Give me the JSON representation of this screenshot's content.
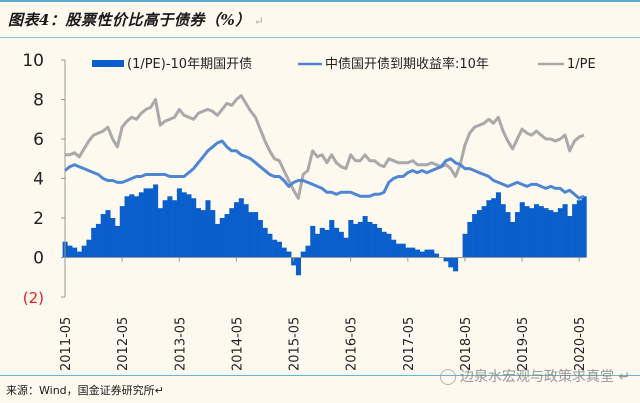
{
  "header": {
    "title": "图表4：股票性价比高于债券（%）",
    "return_mark": "↵"
  },
  "footer": {
    "source": "来源：Wind，国金证券研究所↵",
    "watermark": "边泉水宏观与政策求真堂 ↵"
  },
  "colors": {
    "spread_bar": "#0a5fcc",
    "yield_line": "#4f86d4",
    "pe_line": "#a9a9a9",
    "negative_tick": "#e02020",
    "axis": "#999999",
    "rule": "#5aaed0"
  },
  "chart_data": {
    "type": "bar+line",
    "title": "股票性价比高于债券（%）",
    "xlabel": "",
    "ylabel": "",
    "ylim": [
      -2,
      10
    ],
    "yticks": [
      {
        "value": -2,
        "label": "(2)"
      },
      {
        "value": 0,
        "label": "0"
      },
      {
        "value": 2,
        "label": "2"
      },
      {
        "value": 4,
        "label": "4"
      },
      {
        "value": 6,
        "label": "6"
      },
      {
        "value": 8,
        "label": "8"
      },
      {
        "value": 10,
        "label": "10"
      }
    ],
    "xticks": [
      "2011-05",
      "2012-05",
      "2013-05",
      "2014-05",
      "2015-05",
      "2016-05",
      "2017-05",
      "2018-05",
      "2019-05",
      "2020-05"
    ],
    "x_start": "2011-05",
    "x_end": "2020-06",
    "legend_position": "top",
    "grid": false,
    "x": [
      "2011-05",
      "2011-06",
      "2011-07",
      "2011-08",
      "2011-09",
      "2011-10",
      "2011-11",
      "2011-12",
      "2012-01",
      "2012-02",
      "2012-03",
      "2012-04",
      "2012-05",
      "2012-06",
      "2012-07",
      "2012-08",
      "2012-09",
      "2012-10",
      "2012-11",
      "2012-12",
      "2013-01",
      "2013-02",
      "2013-03",
      "2013-04",
      "2013-05",
      "2013-06",
      "2013-07",
      "2013-08",
      "2013-09",
      "2013-10",
      "2013-11",
      "2013-12",
      "2014-01",
      "2014-02",
      "2014-03",
      "2014-04",
      "2014-05",
      "2014-06",
      "2014-07",
      "2014-08",
      "2014-09",
      "2014-10",
      "2014-11",
      "2014-12",
      "2015-01",
      "2015-02",
      "2015-03",
      "2015-04",
      "2015-05",
      "2015-06",
      "2015-07",
      "2015-08",
      "2015-09",
      "2015-10",
      "2015-11",
      "2015-12",
      "2016-01",
      "2016-02",
      "2016-03",
      "2016-04",
      "2016-05",
      "2016-06",
      "2016-07",
      "2016-08",
      "2016-09",
      "2016-10",
      "2016-11",
      "2016-12",
      "2017-01",
      "2017-02",
      "2017-03",
      "2017-04",
      "2017-05",
      "2017-06",
      "2017-07",
      "2017-08",
      "2017-09",
      "2017-10",
      "2017-11",
      "2017-12",
      "2018-01",
      "2018-02",
      "2018-03",
      "2018-04",
      "2018-05",
      "2018-06",
      "2018-07",
      "2018-08",
      "2018-09",
      "2018-10",
      "2018-11",
      "2018-12",
      "2019-01",
      "2019-02",
      "2019-03",
      "2019-04",
      "2019-05",
      "2019-06",
      "2019-07",
      "2019-08",
      "2019-09",
      "2019-10",
      "2019-11",
      "2019-12",
      "2020-01",
      "2020-02",
      "2020-03",
      "2020-04",
      "2020-05",
      "2020-06"
    ],
    "series": [
      {
        "name": "(1/PE)-10年期国开债",
        "kind": "bar",
        "values": [
          0.8,
          0.6,
          0.5,
          0.3,
          0.6,
          0.9,
          1.5,
          1.7,
          2.2,
          2.4,
          2.0,
          1.6,
          2.6,
          3.1,
          3.2,
          3.1,
          3.3,
          3.5,
          3.5,
          3.7,
          2.5,
          2.9,
          3.1,
          2.9,
          3.5,
          3.3,
          3.2,
          3.0,
          2.5,
          2.4,
          2.9,
          2.4,
          1.7,
          2.0,
          2.2,
          2.5,
          2.8,
          3.0,
          2.7,
          2.3,
          2.3,
          1.9,
          1.5,
          1.2,
          0.9,
          0.8,
          0.5,
          0.3,
          -0.4,
          -0.9,
          0.3,
          0.6,
          1.6,
          1.2,
          1.5,
          1.4,
          1.9,
          1.5,
          1.3,
          1.0,
          1.9,
          1.7,
          1.8,
          2.1,
          1.8,
          1.7,
          1.5,
          1.3,
          1.2,
          0.9,
          0.7,
          0.7,
          0.5,
          0.5,
          0.4,
          0.3,
          0.4,
          0.4,
          0.2,
          0.0,
          -0.2,
          -0.5,
          -0.7,
          0.0,
          1.2,
          1.8,
          2.2,
          2.4,
          2.6,
          2.9,
          3.0,
          3.3,
          2.7,
          2.3,
          1.8,
          2.3,
          2.8,
          2.6,
          2.5,
          2.7,
          2.6,
          2.5,
          2.4,
          2.3,
          2.5,
          2.7,
          2.1,
          2.7,
          2.9,
          3.1
        ]
      },
      {
        "name": "中债国开债到期收益率:10年",
        "kind": "line",
        "values": [
          4.4,
          4.6,
          4.7,
          4.6,
          4.5,
          4.4,
          4.3,
          4.2,
          4.0,
          3.9,
          3.9,
          3.8,
          3.8,
          3.9,
          4.0,
          4.1,
          4.1,
          4.2,
          4.2,
          4.2,
          4.2,
          4.2,
          4.1,
          4.1,
          4.1,
          4.1,
          4.3,
          4.5,
          4.8,
          5.1,
          5.4,
          5.6,
          5.8,
          5.9,
          5.6,
          5.4,
          5.4,
          5.2,
          5.1,
          5.0,
          4.8,
          4.6,
          4.4,
          4.2,
          4.1,
          4.1,
          3.9,
          3.6,
          3.8,
          3.9,
          3.9,
          3.8,
          3.7,
          3.6,
          3.5,
          3.3,
          3.3,
          3.2,
          3.3,
          3.3,
          3.3,
          3.2,
          3.1,
          3.1,
          3.1,
          3.2,
          3.2,
          3.3,
          3.8,
          4.0,
          4.1,
          4.1,
          4.3,
          4.4,
          4.3,
          4.4,
          4.3,
          4.4,
          4.5,
          4.6,
          4.9,
          5.0,
          4.8,
          4.7,
          4.5,
          4.5,
          4.4,
          4.3,
          4.2,
          4.1,
          3.9,
          3.8,
          3.7,
          3.6,
          3.7,
          3.8,
          3.7,
          3.6,
          3.7,
          3.7,
          3.6,
          3.5,
          3.6,
          3.5,
          3.5,
          3.3,
          3.4,
          3.2,
          3.0,
          3.1
        ]
      },
      {
        "name": "1/PE",
        "kind": "line",
        "values": [
          5.2,
          5.2,
          5.3,
          5.1,
          5.5,
          5.9,
          6.2,
          6.3,
          6.4,
          6.6,
          6.0,
          5.6,
          6.6,
          6.9,
          7.1,
          7.0,
          7.3,
          7.5,
          7.6,
          8.0,
          6.7,
          6.9,
          7.0,
          7.1,
          7.5,
          7.2,
          7.1,
          7.0,
          7.3,
          7.4,
          7.5,
          7.4,
          7.2,
          7.5,
          7.8,
          7.7,
          8.0,
          8.2,
          7.8,
          7.4,
          7.1,
          6.5,
          5.9,
          5.4,
          5.0,
          4.9,
          4.4,
          3.9,
          3.4,
          3.0,
          4.2,
          4.4,
          5.4,
          5.1,
          5.2,
          4.8,
          5.2,
          4.8,
          4.6,
          4.5,
          5.2,
          4.9,
          4.9,
          5.2,
          4.9,
          4.9,
          4.7,
          4.6,
          5.0,
          4.9,
          4.8,
          4.8,
          4.8,
          4.9,
          4.7,
          4.7,
          4.7,
          4.8,
          4.7,
          4.6,
          4.7,
          4.5,
          4.1,
          4.7,
          5.7,
          6.3,
          6.6,
          6.7,
          6.8,
          7.0,
          6.8,
          7.1,
          6.4,
          5.9,
          5.5,
          6.0,
          6.5,
          6.3,
          6.2,
          6.4,
          6.2,
          6.0,
          6.0,
          5.9,
          6.0,
          6.2,
          5.4,
          5.9,
          6.1,
          6.2
        ]
      }
    ]
  }
}
